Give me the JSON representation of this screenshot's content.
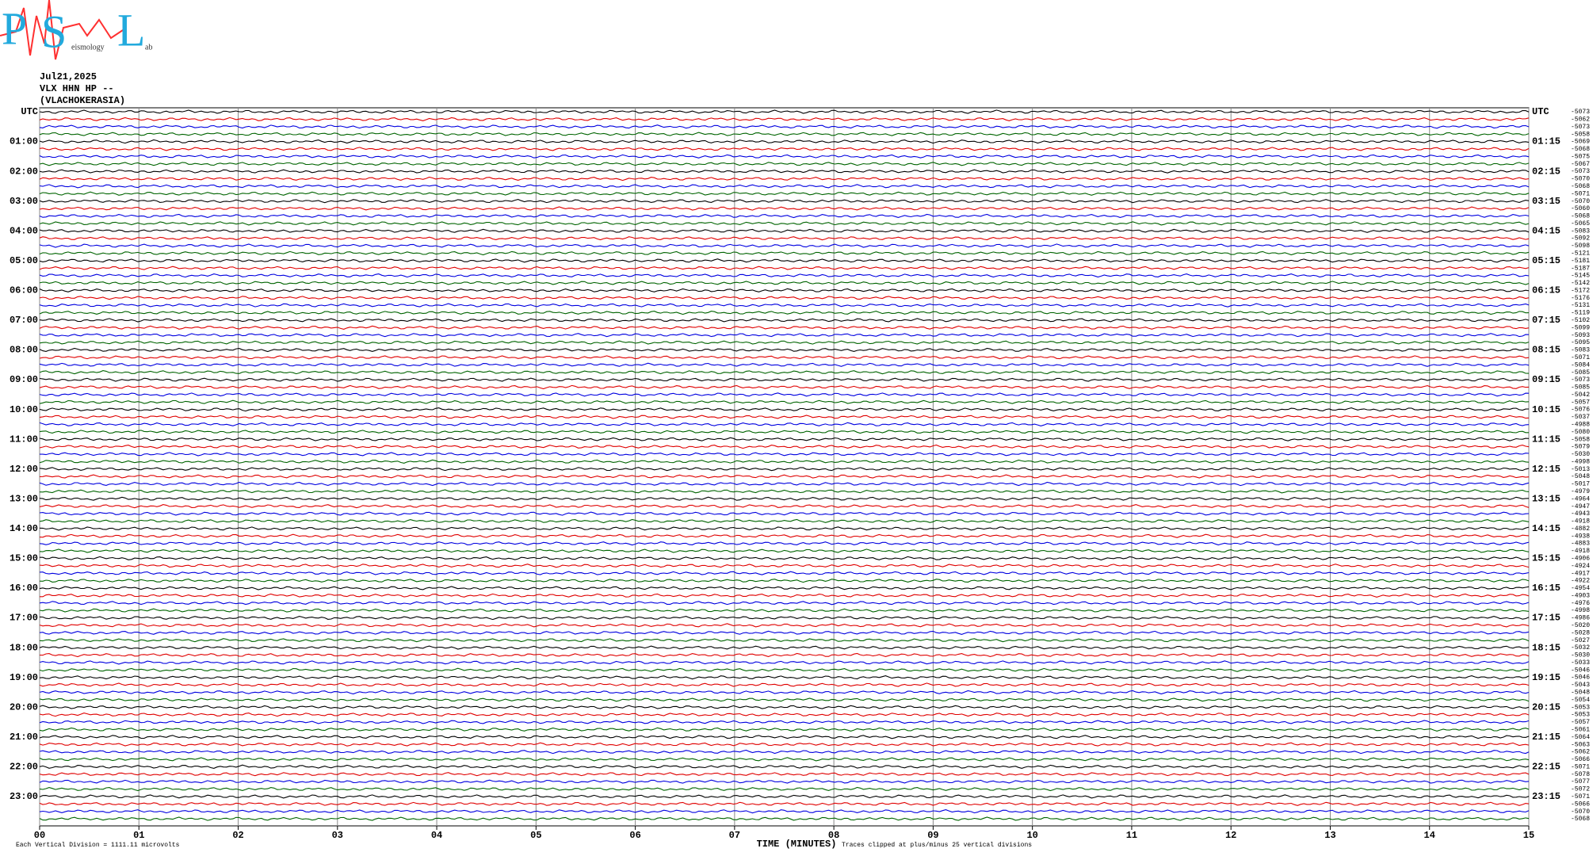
{
  "logo": {
    "letters": [
      "P",
      "S",
      "L"
    ],
    "subtitle": "eismology",
    "suffix": "ab"
  },
  "header": {
    "date": "Jul21,2025",
    "station": "VLX HHN HP --",
    "site": "(VLACHOKERASIA)"
  },
  "chart_data": {
    "type": "helicorder",
    "xlabel": "TIME (MINUTES)",
    "xlim": [
      0,
      15
    ],
    "xticks": [
      {
        "value": 0,
        "label": "00"
      },
      {
        "value": 1,
        "label": "01"
      },
      {
        "value": 2,
        "label": "02"
      },
      {
        "value": 3,
        "label": "03"
      },
      {
        "value": 4,
        "label": "04"
      },
      {
        "value": 5,
        "label": "05"
      },
      {
        "value": 6,
        "label": "06"
      },
      {
        "value": 7,
        "label": "07"
      },
      {
        "value": 8,
        "label": "08"
      },
      {
        "value": 9,
        "label": "09"
      },
      10,
      11,
      12,
      13,
      14,
      15
    ],
    "grid": true,
    "colors": [
      "#000000",
      "#e00000",
      "#0000e0",
      "#006400"
    ],
    "left_labels": [
      "UTC",
      "01:00",
      "02:00",
      "03:00",
      "04:00",
      "05:00",
      "06:00",
      "07:00",
      "08:00",
      "09:00",
      "10:00",
      "11:00",
      "12:00",
      "13:00",
      "14:00",
      "15:00",
      "16:00",
      "17:00",
      "18:00",
      "19:00",
      "20:00",
      "21:00",
      "22:00",
      "23:00"
    ],
    "right_labels": [
      "UTC",
      "01:15",
      "02:15",
      "03:15",
      "04:15",
      "05:15",
      "06:15",
      "07:15",
      "08:15",
      "09:15",
      "10:15",
      "11:15",
      "12:15",
      "13:15",
      "14:15",
      "15:15",
      "16:15",
      "17:15",
      "18:15",
      "19:15",
      "20:15",
      "21:15",
      "22:15",
      "23:15"
    ],
    "offsets": [
      -5073,
      -5062,
      -5073,
      -5058,
      -5069,
      -5068,
      -5075,
      -5067,
      -5073,
      -5070,
      -5068,
      -5071,
      -5070,
      -5060,
      -5068,
      -5065,
      -5083,
      -5092,
      -5098,
      -5121,
      -5181,
      -5187,
      -5145,
      -5142,
      -5172,
      -5176,
      -5131,
      -5119,
      -5102,
      -5099,
      -5093,
      -5095,
      -5083,
      -5071,
      -5084,
      -5085,
      -5073,
      -5085,
      -5042,
      -5057,
      -5076,
      -5037,
      -4988,
      -5080,
      -5058,
      -5079,
      -5030,
      -4998,
      -5013,
      -5048,
      -5017,
      -4979,
      -4964,
      -4947,
      -4943,
      -4918,
      -4882,
      -4938,
      -4883,
      -4918,
      -4906,
      -4924,
      -4917,
      -4922,
      -4954,
      -4903,
      -4976,
      -4998,
      -4986,
      -5020,
      -5028,
      -5027,
      -5032,
      -5030,
      -5033,
      -5046,
      -5046,
      -5043,
      -5048,
      -5054,
      -5053,
      -5053,
      -5057,
      -5061,
      -5064,
      -5063,
      -5062,
      -5066,
      -5071,
      -5078,
      -5077,
      -5072,
      -5071,
      -5066,
      -5070,
      -5068
    ]
  },
  "footer": {
    "left": "Each Vertical Division = 1111.11 microvolts",
    "right": "Traces clipped at plus/minus 25 vertical divisions"
  }
}
